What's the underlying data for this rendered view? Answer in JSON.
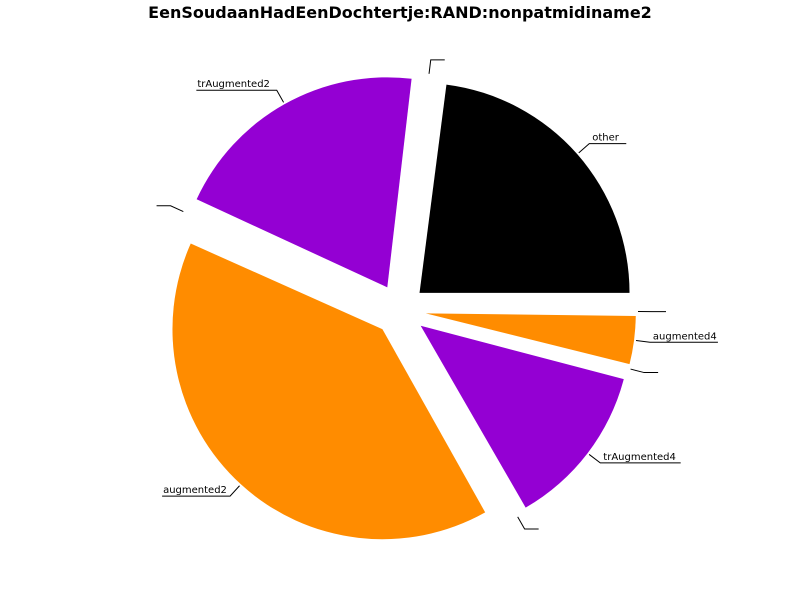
{
  "chart_data": {
    "type": "pie",
    "title": "EenSoudaanHadEenDochtertje:RAND:nonpatmidiname2",
    "slices": [
      {
        "label": "other",
        "value": 23.0,
        "color": "#000000"
      },
      {
        "label": "",
        "value": 0.2,
        "color": "#ffffff"
      },
      {
        "label": "trAugmented2",
        "value": 20.0,
        "color": "#9400d3"
      },
      {
        "label": "",
        "value": 0.2,
        "color": "#ffffff"
      },
      {
        "label": "augmented2",
        "value": 39.9,
        "color": "#ff8c00"
      },
      {
        "label": "",
        "value": 0.2,
        "color": "#ffffff"
      },
      {
        "label": "trAugmented4",
        "value": 12.6,
        "color": "#9400d3"
      },
      {
        "label": "",
        "value": 0.2,
        "color": "#ffffff"
      },
      {
        "label": "augmented4",
        "value": 3.7,
        "color": "#ff8c00"
      },
      {
        "label": "",
        "value": 0.2,
        "color": "#ffffff"
      }
    ]
  }
}
